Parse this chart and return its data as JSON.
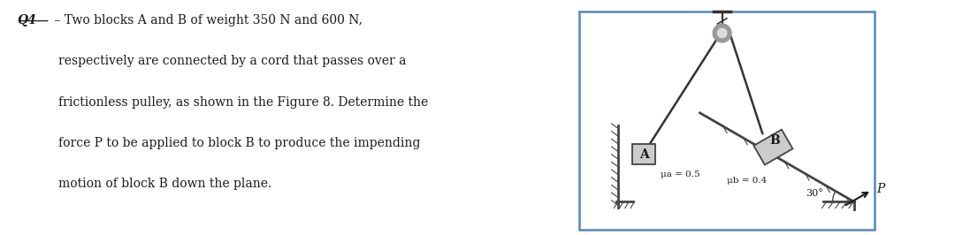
{
  "bg_color": "#ffffff",
  "box_border_color": "#5588bb",
  "text_color": "#1a1a1a",
  "q_label": "Q4",
  "dash": " – ",
  "line1": "Two blocks A and B of weight 350 N and 600 N,",
  "line2": "respectively are connected by a cord that passes over a",
  "line3": "frictionless pulley, as shown in the Figure 8. Determine the",
  "line4": "force P to be applied to block B to produce the impending",
  "line5": "motion of block B down the plane.",
  "mu_a_label": "μa = 0.5",
  "mu_b_label": "μb = 0.4",
  "angle_label": "30°",
  "block_a_label": "A",
  "block_b_label": "B",
  "p_label": "P",
  "block_color": "#cccccc",
  "block_edge_color": "#444444",
  "rope_color": "#333333",
  "ground_color": "#444444",
  "pulley_outer_color": "#999999",
  "pulley_inner_color": "#dddddd",
  "support_color": "#333333"
}
